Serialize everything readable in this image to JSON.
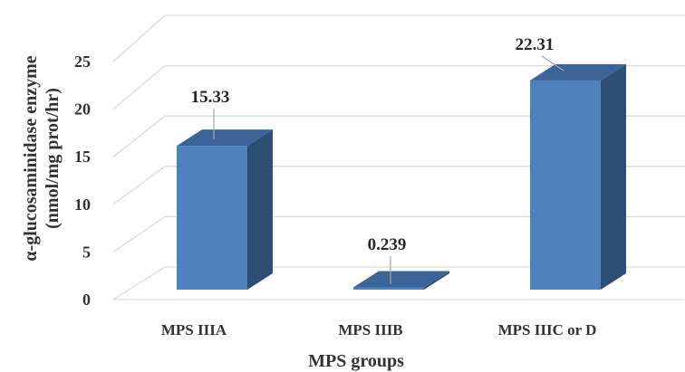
{
  "chart_data": {
    "type": "bar",
    "style": "3d-column",
    "categories": [
      "MPS IIIA",
      "MPS IIIB",
      "MPS IIIC or D"
    ],
    "values": [
      15.33,
      0.239,
      22.31
    ],
    "data_labels": [
      "15.33",
      "0.239",
      "22.31"
    ],
    "xlabel": "MPS groups",
    "ylabel_line1": "α-glucosaminidase enzyme",
    "ylabel_line2": "(nmol/mg prot/hr)",
    "ylim": [
      0,
      25
    ],
    "yticks": [
      "0",
      "5",
      "10",
      "15",
      "20",
      "25"
    ],
    "grid": true,
    "colors": {
      "front": "#4f81bd",
      "side": "#2f4e74",
      "top": "#3c6498",
      "grid": "#d9d9d9",
      "leader": "#a6a6a6"
    }
  }
}
